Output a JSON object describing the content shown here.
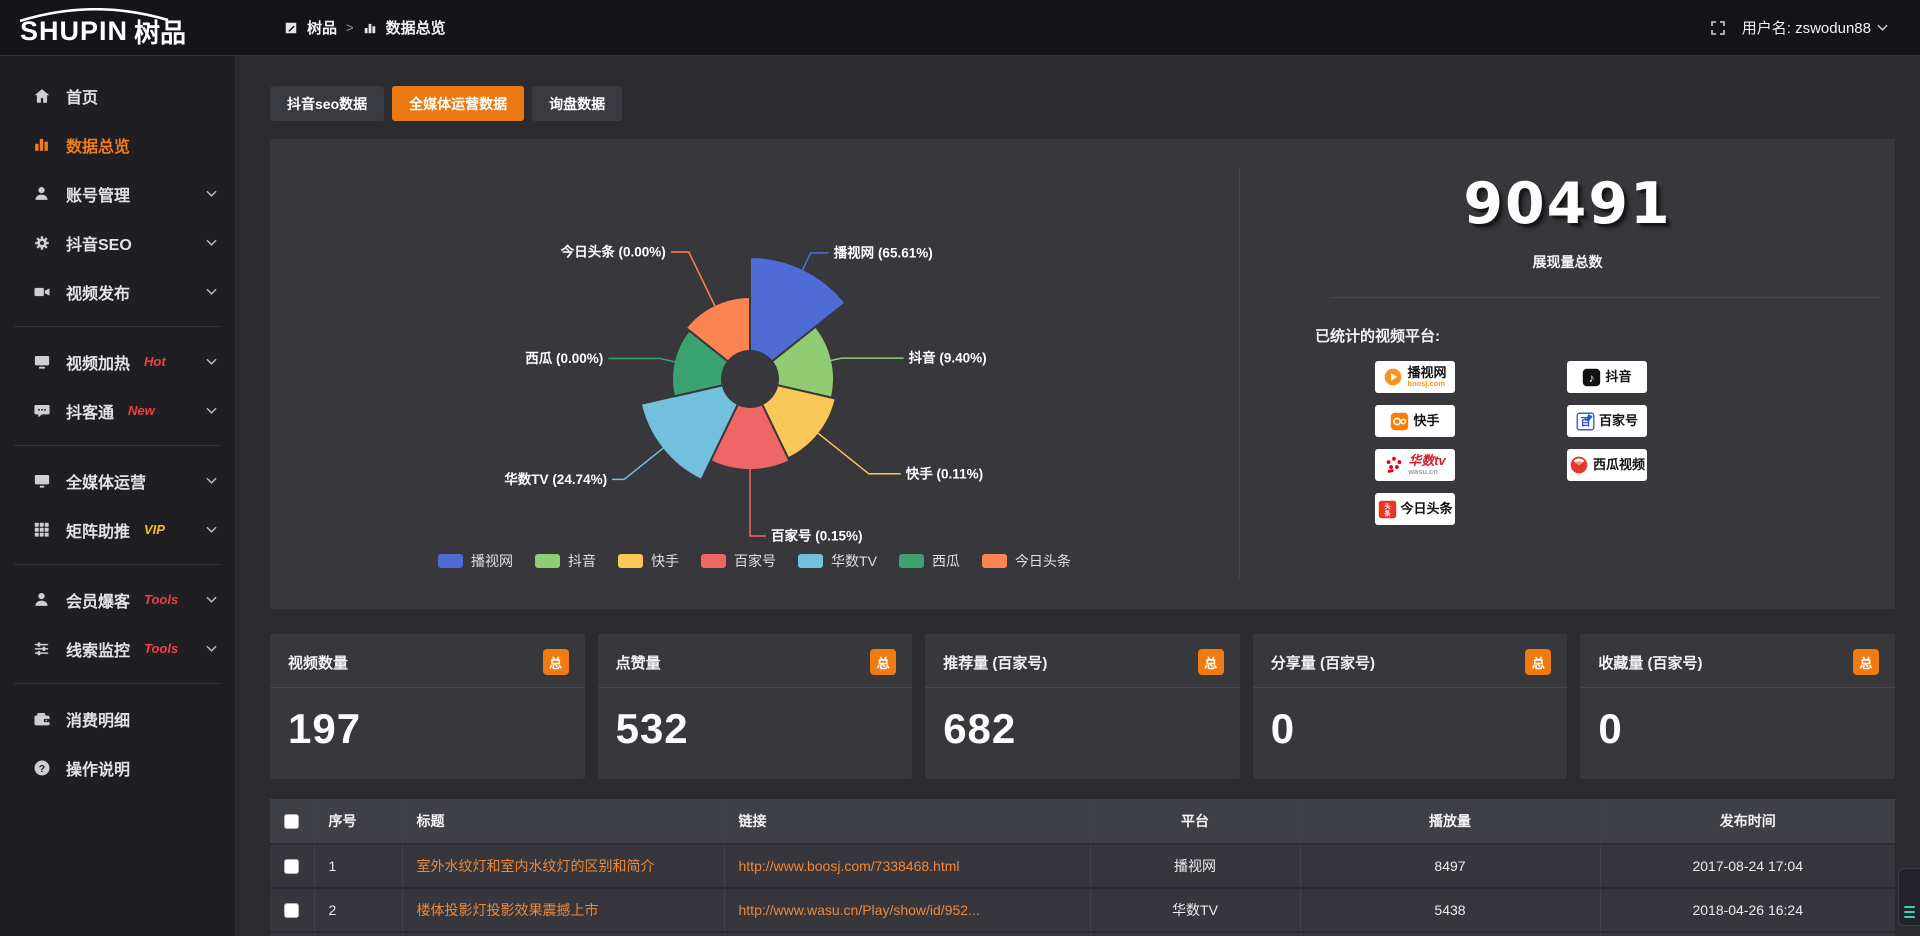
{
  "topbar": {
    "logo_en": "SHUPIN",
    "logo_cn": "树品",
    "breadcrumb": [
      "树品",
      "数据总览"
    ],
    "breadcrumb_sep": ">",
    "username": "用户名: zswodun88"
  },
  "sidebar": {
    "sections": [
      [
        {
          "key": "home",
          "label": "首页",
          "icon": "home"
        },
        {
          "key": "data-overview",
          "label": "数据总览",
          "icon": "chart",
          "active": true
        },
        {
          "key": "account-management",
          "label": "账号管理",
          "icon": "user",
          "chevron": true
        },
        {
          "key": "douyin-seo",
          "label": "抖音SEO",
          "icon": "gear",
          "chevron": true
        },
        {
          "key": "video-publish",
          "label": "视频发布",
          "icon": "video",
          "chevron": true
        }
      ],
      [
        {
          "key": "video-heat",
          "label": "视频加热",
          "icon": "heat",
          "badge": "Hot",
          "badge_color": "#f43f3f",
          "chevron": true
        },
        {
          "key": "douketong",
          "label": "抖客通",
          "icon": "chat",
          "badge": "New",
          "badge_color": "#f43f3f",
          "chevron": true
        }
      ],
      [
        {
          "key": "media-operation",
          "label": "全媒体运营",
          "icon": "monitor",
          "chevron": true
        },
        {
          "key": "matrix-boost",
          "label": "矩阵助推",
          "icon": "grid",
          "badge": "VIP",
          "badge_color": "#f5c026",
          "chevron": true
        }
      ],
      [
        {
          "key": "member-baoke",
          "label": "会员爆客",
          "icon": "person",
          "badge": "Tools",
          "badge_color": "#f43f3f",
          "chevron": true
        },
        {
          "key": "clue-monitor",
          "label": "线索监控",
          "icon": "sliders",
          "badge": "Tools",
          "badge_color": "#f43f3f",
          "chevron": true
        }
      ],
      [
        {
          "key": "consume-detail",
          "label": "消费明细",
          "icon": "wallet"
        },
        {
          "key": "operation-guide",
          "label": "操作说明",
          "icon": "question"
        }
      ]
    ]
  },
  "tabs": [
    {
      "key": "douyin-seo-data",
      "label": "抖音seo数据",
      "active": false
    },
    {
      "key": "media-operation-data",
      "label": "全媒体运营数据",
      "active": true
    },
    {
      "key": "inquiry-data",
      "label": "询盘数据",
      "active": false
    }
  ],
  "chart_data": {
    "type": "pie",
    "variant": "nightingale-rose",
    "legend_position": "bottom",
    "items": [
      {
        "name": "播视网",
        "percent": 65.61,
        "color": "#4f6bd5"
      },
      {
        "name": "抖音",
        "percent": 9.4,
        "color": "#8fcc72"
      },
      {
        "name": "快手",
        "percent": 0.11,
        "color": "#fac858"
      },
      {
        "name": "百家号",
        "percent": 0.15,
        "color": "#ee6666"
      },
      {
        "name": "华数TV",
        "percent": 24.74,
        "color": "#73c0de"
      },
      {
        "name": "西瓜",
        "percent": 0.0,
        "color": "#3ba272"
      },
      {
        "name": "今日头条",
        "percent": 0.0,
        "color": "#fc8452"
      }
    ]
  },
  "summary": {
    "total_value": "90491",
    "total_label": "展现量总数",
    "platforms_title": "已统计的视频平台:",
    "platforms": [
      {
        "key": "boosj",
        "name": "播视网",
        "sub": "boosj.com",
        "sub_color": "#f7931e"
      },
      {
        "key": "douyin",
        "name": "抖音"
      },
      {
        "key": "kuaishou",
        "name": "快手"
      },
      {
        "key": "baijiahao",
        "name": "百家号"
      },
      {
        "key": "wasu",
        "name": "华数tv",
        "name_color": "#cf2030",
        "sub": "wasu.cn",
        "sub_color": "#a0a0a0"
      },
      {
        "key": "xigua",
        "name": "西瓜视频"
      },
      {
        "key": "toutiao",
        "name": "今日头条"
      }
    ]
  },
  "stat_cards": [
    {
      "label": "视频数量",
      "badge": "总",
      "value": "197"
    },
    {
      "label": "点赞量",
      "badge": "总",
      "value": "532"
    },
    {
      "label": "推荐量 (百家号)",
      "badge": "总",
      "value": "682"
    },
    {
      "label": "分享量 (百家号)",
      "badge": "总",
      "value": "0"
    },
    {
      "label": "收藏量 (百家号)",
      "badge": "总",
      "value": "0"
    }
  ],
  "table": {
    "headers": [
      "序号",
      "标题",
      "链接",
      "平台",
      "播放量",
      "发布时间"
    ],
    "rows": [
      {
        "num": "1",
        "title": "室外水纹灯和室内水纹灯的区别和简介",
        "link": "http://www.boosj.com/7338468.html",
        "platform": "播视网",
        "plays": "8497",
        "time": "2017-08-24 17:04"
      },
      {
        "num": "2",
        "title": "楼体投影灯投影效果震撼上市",
        "link": "http://www.wasu.cn/Play/show/id/952...",
        "platform": "华数TV",
        "plays": "5438",
        "time": "2018-04-26 16:24"
      }
    ]
  }
}
